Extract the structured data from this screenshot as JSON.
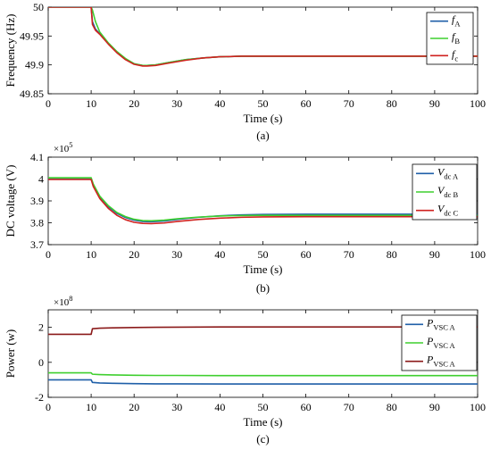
{
  "colors": {
    "A": "#1f5fa8",
    "B": "#3fcf2f",
    "C": "#d0221f"
  },
  "chart_data": [
    {
      "type": "line",
      "caption": "(a)",
      "xlabel": "Time (s)",
      "ylabel": "Frequency (Hz)",
      "xlim": [
        0,
        100
      ],
      "ylim": [
        49.85,
        50
      ],
      "xticks": [
        "0",
        "10",
        "20",
        "30",
        "40",
        "50",
        "60",
        "70",
        "80",
        "90",
        "100"
      ],
      "yticks": [
        "49.85",
        "49.9",
        "49.95",
        "50"
      ],
      "legend_position": "top-right",
      "legend": [
        {
          "main": "f",
          "sub": "A",
          "color": "#1f5fa8"
        },
        {
          "main": "f",
          "sub": "B",
          "color": "#3fcf2f"
        },
        {
          "main": "f",
          "sub": "c",
          "color": "#d0221f"
        }
      ],
      "series": [
        {
          "name": "fA",
          "color": "#1f5fa8",
          "x": [
            0,
            10,
            10.3,
            11,
            12,
            14,
            16,
            18,
            20,
            22,
            23,
            25,
            28,
            32,
            36,
            40,
            45,
            50,
            60,
            70,
            80,
            90,
            100
          ],
          "y": [
            50,
            50,
            49.975,
            49.962,
            49.954,
            49.937,
            49.922,
            49.91,
            49.902,
            49.899,
            49.899,
            49.9,
            49.904,
            49.909,
            49.912,
            49.914,
            49.915,
            49.915,
            49.915,
            49.915,
            49.915,
            49.915,
            49.915
          ]
        },
        {
          "name": "fB",
          "color": "#3fcf2f",
          "x": [
            0,
            10,
            10.3,
            11,
            12,
            14,
            16,
            18,
            20,
            22,
            23,
            25,
            28,
            32,
            36,
            40,
            45,
            50,
            60,
            70,
            80,
            90,
            100
          ],
          "y": [
            50,
            50,
            49.995,
            49.975,
            49.957,
            49.938,
            49.923,
            49.911,
            49.902,
            49.899,
            49.899,
            49.9,
            49.904,
            49.909,
            49.912,
            49.914,
            49.915,
            49.915,
            49.915,
            49.915,
            49.915,
            49.915,
            49.915
          ]
        },
        {
          "name": "fC",
          "color": "#d0221f",
          "x": [
            0,
            10,
            10.3,
            11,
            12,
            14,
            16,
            18,
            20,
            22,
            23,
            25,
            28,
            32,
            36,
            40,
            45,
            50,
            60,
            70,
            80,
            90,
            100
          ],
          "y": [
            50,
            50,
            49.97,
            49.96,
            49.953,
            49.936,
            49.921,
            49.909,
            49.901,
            49.898,
            49.898,
            49.899,
            49.903,
            49.908,
            49.912,
            49.914,
            49.915,
            49.915,
            49.915,
            49.915,
            49.915,
            49.915,
            49.915
          ]
        }
      ]
    },
    {
      "type": "line",
      "caption": "(b)",
      "xlabel": "Time (s)",
      "ylabel": "DC voltage (V)",
      "multiplier": "×10",
      "multiplier_exp": "5",
      "xlim": [
        0,
        100
      ],
      "ylim": [
        3.7,
        4.1
      ],
      "xticks": [
        "0",
        "10",
        "20",
        "30",
        "40",
        "50",
        "60",
        "70",
        "80",
        "90",
        "100"
      ],
      "yticks": [
        "3.7",
        "3.8",
        "3.9",
        "4",
        "4.1"
      ],
      "legend_position": "right",
      "legend": [
        {
          "main": "V",
          "sub": "dc A",
          "color": "#1f5fa8"
        },
        {
          "main": "V",
          "sub": "dc B",
          "color": "#3fcf2f"
        },
        {
          "main": "V",
          "sub": "dc C",
          "color": "#d0221f"
        }
      ],
      "series": [
        {
          "name": "Vdc A",
          "color": "#1f5fa8",
          "x": [
            0,
            10,
            10.5,
            12,
            14,
            16,
            18,
            20,
            22,
            24,
            27,
            30,
            35,
            40,
            45,
            50,
            60,
            70,
            80,
            90,
            100
          ],
          "y": [
            4.0,
            4.0,
            3.97,
            3.918,
            3.874,
            3.843,
            3.824,
            3.812,
            3.806,
            3.805,
            3.808,
            3.815,
            3.825,
            3.832,
            3.836,
            3.838,
            3.839,
            3.839,
            3.839,
            3.839,
            3.839
          ]
        },
        {
          "name": "Vdc B",
          "color": "#3fcf2f",
          "x": [
            0,
            10,
            10.5,
            12,
            14,
            16,
            18,
            20,
            22,
            24,
            27,
            30,
            35,
            40,
            45,
            50,
            60,
            70,
            80,
            90,
            100
          ],
          "y": [
            4.006,
            4.006,
            3.977,
            3.922,
            3.878,
            3.847,
            3.828,
            3.816,
            3.81,
            3.809,
            3.812,
            3.818,
            3.826,
            3.831,
            3.833,
            3.834,
            3.834,
            3.834,
            3.834,
            3.834,
            3.834
          ]
        },
        {
          "name": "Vdc C",
          "color": "#d0221f",
          "x": [
            0,
            10,
            10.5,
            12,
            14,
            16,
            18,
            20,
            22,
            24,
            27,
            30,
            35,
            40,
            45,
            50,
            60,
            70,
            80,
            90,
            100
          ],
          "y": [
            3.998,
            3.998,
            3.966,
            3.911,
            3.866,
            3.834,
            3.814,
            3.802,
            3.797,
            3.796,
            3.799,
            3.806,
            3.815,
            3.821,
            3.825,
            3.827,
            3.828,
            3.828,
            3.828,
            3.828,
            3.828
          ]
        }
      ]
    },
    {
      "type": "line",
      "caption": "(c)",
      "xlabel": "Time (s)",
      "ylabel": "Power (w)",
      "multiplier": "×10",
      "multiplier_exp": "8",
      "xlim": [
        0,
        100
      ],
      "ylim": [
        -2,
        3
      ],
      "xticks": [
        "0",
        "10",
        "20",
        "30",
        "40",
        "50",
        "60",
        "70",
        "80",
        "90",
        "100"
      ],
      "yticks": [
        "-2",
        "0",
        "2"
      ],
      "legend_position": "right",
      "legend": [
        {
          "main": "P",
          "sub": "VSC A",
          "color": "#1f5fa8"
        },
        {
          "main": "P",
          "sub": "VSC A",
          "color": "#3fcf2f"
        },
        {
          "main": "P",
          "sub": "VSC A",
          "color": "#8b1a1a"
        }
      ],
      "series": [
        {
          "name": "PVSC A (blue)",
          "color": "#1f5fa8",
          "x": [
            0,
            10,
            10.3,
            12,
            15,
            20,
            25,
            30,
            40,
            50,
            60,
            70,
            80,
            90,
            100
          ],
          "y": [
            -1.0,
            -1.0,
            -1.15,
            -1.18,
            -1.2,
            -1.22,
            -1.23,
            -1.23,
            -1.24,
            -1.24,
            -1.24,
            -1.24,
            -1.24,
            -1.24,
            -1.24
          ]
        },
        {
          "name": "PVSC A (green)",
          "color": "#3fcf2f",
          "x": [
            0,
            10,
            10.3,
            12,
            15,
            20,
            25,
            30,
            40,
            50,
            60,
            70,
            80,
            90,
            100
          ],
          "y": [
            -0.6,
            -0.6,
            -0.68,
            -0.7,
            -0.72,
            -0.74,
            -0.75,
            -0.75,
            -0.76,
            -0.76,
            -0.76,
            -0.76,
            -0.76,
            -0.76,
            -0.76
          ]
        },
        {
          "name": "PVSC A (dark red)",
          "color": "#8b1a1a",
          "x": [
            0,
            10,
            10.3,
            12,
            15,
            20,
            25,
            30,
            40,
            50,
            60,
            70,
            80,
            90,
            100
          ],
          "y": [
            1.6,
            1.6,
            1.92,
            1.95,
            1.97,
            1.99,
            2.0,
            2.01,
            2.02,
            2.02,
            2.02,
            2.02,
            2.02,
            2.02,
            2.02
          ]
        }
      ]
    }
  ]
}
